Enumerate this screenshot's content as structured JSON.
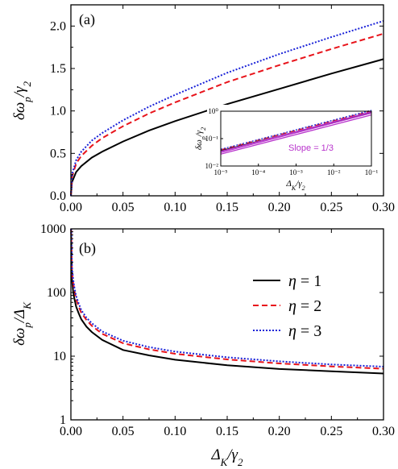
{
  "chart_data": [
    {
      "type": "line",
      "panel_label": "(a)",
      "xlabel": "",
      "ylabel": "δω_p/γ_2",
      "xlim": [
        0,
        0.3
      ],
      "ylim": [
        0,
        2.25
      ],
      "xticks": [
        "0.00",
        "0.05",
        "0.10",
        "0.15",
        "0.20",
        "0.25",
        "0.30"
      ],
      "yticks": [
        "0.0",
        "0.5",
        "1.0",
        "1.5",
        "2.0"
      ],
      "series": [
        {
          "name": "η = 1",
          "color": "#000000",
          "dash": "solid",
          "x": [
            0.0,
            0.001,
            0.005,
            0.01,
            0.02,
            0.03,
            0.05,
            0.075,
            0.1,
            0.15,
            0.2,
            0.25,
            0.3
          ],
          "y": [
            0.0,
            0.16,
            0.28,
            0.35,
            0.45,
            0.52,
            0.64,
            0.77,
            0.88,
            1.08,
            1.26,
            1.44,
            1.61
          ]
        },
        {
          "name": "η = 2",
          "color": "#e8141b",
          "dash": "dash",
          "x": [
            0.0,
            0.001,
            0.005,
            0.01,
            0.02,
            0.03,
            0.05,
            0.075,
            0.1,
            0.15,
            0.2,
            0.25,
            0.3
          ],
          "y": [
            0.0,
            0.22,
            0.38,
            0.47,
            0.59,
            0.68,
            0.82,
            0.97,
            1.1,
            1.34,
            1.54,
            1.73,
            1.91
          ]
        },
        {
          "name": "η = 3",
          "color": "#1a22d8",
          "dash": "dot",
          "x": [
            0.0,
            0.001,
            0.005,
            0.01,
            0.02,
            0.03,
            0.05,
            0.075,
            0.1,
            0.15,
            0.2,
            0.25,
            0.3
          ],
          "y": [
            0.0,
            0.25,
            0.42,
            0.52,
            0.65,
            0.74,
            0.89,
            1.05,
            1.19,
            1.45,
            1.67,
            1.87,
            2.06
          ]
        }
      ],
      "inset": {
        "type": "line",
        "xscale": "log",
        "yscale": "log",
        "xlabel": "Δ_K/γ_2",
        "ylabel": "δω_p/γ_2",
        "xlim": [
          1e-05,
          0.1
        ],
        "ylim": [
          0.01,
          1
        ],
        "xticks": [
          "10⁻⁵",
          "10⁻⁴",
          "10⁻³",
          "10⁻²",
          "10⁻¹"
        ],
        "yticks": [
          "10⁻²",
          "10⁻¹",
          "10⁰"
        ],
        "annotation": "Slope = 1/3",
        "annotation_color": "#b833cc",
        "series": [
          {
            "name": "η = 1",
            "color": "#000000",
            "dash": "solid",
            "x": [
              1e-05,
              0.1
            ],
            "y": [
              0.036,
              0.89
            ]
          },
          {
            "name": "η = 2",
            "color": "#e8141b",
            "dash": "dash",
            "x": [
              1e-05,
              0.1
            ],
            "y": [
              0.039,
              1.02
            ]
          },
          {
            "name": "η = 3",
            "color": "#1a22d8",
            "dash": "dot",
            "x": [
              1e-05,
              0.1
            ],
            "y": [
              0.041,
              1.08
            ]
          },
          {
            "name": "",
            "color": "#b833cc",
            "dash": "solid",
            "x": [
              1e-05,
              0.1
            ],
            "y": [
              0.027,
              0.73
            ]
          },
          {
            "name": "",
            "color": "#b833cc",
            "dash": "solid",
            "x": [
              1e-05,
              0.1
            ],
            "y": [
              0.031,
              0.86
            ]
          },
          {
            "name": "",
            "color": "#b833cc",
            "dash": "solid",
            "x": [
              1e-05,
              0.1
            ],
            "y": [
              0.034,
              0.95
            ]
          }
        ]
      }
    },
    {
      "type": "line",
      "panel_label": "(b)",
      "xlabel": "Δ_K/γ_2",
      "ylabel": "δω_p/Δ_K",
      "yscale": "log",
      "xlim": [
        0,
        0.3
      ],
      "ylim": [
        1,
        1000
      ],
      "xticks": [
        "0.00",
        "0.05",
        "0.10",
        "0.15",
        "0.20",
        "0.25",
        "0.30"
      ],
      "yticks": [
        "1",
        "10",
        "100",
        "1000"
      ],
      "legend": [
        "η = 1",
        "η = 2",
        "η = 3"
      ],
      "legend_position": "top-right",
      "series": [
        {
          "name": "η = 1",
          "color": "#000000",
          "dash": "solid",
          "x": [
            0.001,
            0.002,
            0.003,
            0.005,
            0.0075,
            0.01,
            0.015,
            0.02,
            0.03,
            0.05,
            0.075,
            0.1,
            0.15,
            0.2,
            0.25,
            0.3
          ],
          "y": [
            160,
            110,
            85,
            60,
            47,
            38,
            29,
            24,
            18,
            12.5,
            10.3,
            8.8,
            7.2,
            6.3,
            5.8,
            5.35
          ]
        },
        {
          "name": "η = 2",
          "color": "#e8141b",
          "dash": "dash",
          "x": [
            0.001,
            0.002,
            0.003,
            0.005,
            0.0075,
            0.01,
            0.015,
            0.02,
            0.03,
            0.05,
            0.075,
            0.1,
            0.15,
            0.2,
            0.25,
            0.3
          ],
          "y": [
            220,
            150,
            115,
            78,
            60,
            48,
            37,
            30,
            22.5,
            16,
            12.8,
            10.9,
            8.9,
            7.7,
            6.9,
            6.35
          ]
        },
        {
          "name": "η = 3",
          "color": "#1a22d8",
          "dash": "dot",
          "x": [
            0.001,
            0.002,
            0.003,
            0.005,
            0.0075,
            0.01,
            0.015,
            0.02,
            0.03,
            0.05,
            0.075,
            0.1,
            0.15,
            0.2,
            0.25,
            0.3
          ],
          "y": [
            250,
            170,
            128,
            88,
            67,
            53,
            40,
            33,
            24.5,
            17.5,
            13.9,
            11.8,
            9.6,
            8.3,
            7.4,
            6.85
          ]
        }
      ]
    }
  ]
}
